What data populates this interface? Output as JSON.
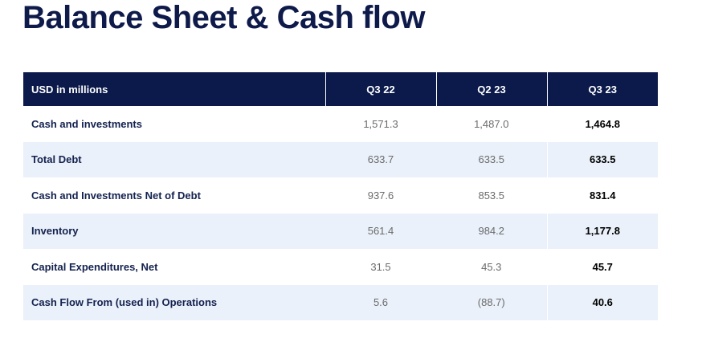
{
  "title": "Balance Sheet & Cash flow",
  "table": {
    "header": {
      "label": "USD in millions",
      "columns": [
        "Q3 22",
        "Q2 23",
        "Q3 23"
      ]
    },
    "rows": [
      {
        "label": "Cash and investments",
        "values": [
          "1,571.3",
          "1,487.0",
          "1,464.8"
        ]
      },
      {
        "label": "Total Debt",
        "values": [
          "633.7",
          "633.5",
          "633.5"
        ]
      },
      {
        "label": "Cash and Investments Net of Debt",
        "values": [
          "937.6",
          "853.5",
          "831.4"
        ]
      },
      {
        "label": "Inventory",
        "values": [
          "561.4",
          "984.2",
          "1,177.8"
        ]
      },
      {
        "label": "Capital Expenditures, Net",
        "values": [
          "31.5",
          "45.3",
          "45.7"
        ]
      },
      {
        "label": "Cash Flow From (used in) Operations",
        "values": [
          "5.6",
          "(88.7)",
          "40.6"
        ]
      }
    ]
  },
  "colors": {
    "header_bg": "#0b1a4b",
    "title": "#0e1a4a",
    "alt_row_bg": "#eaf1fa"
  }
}
